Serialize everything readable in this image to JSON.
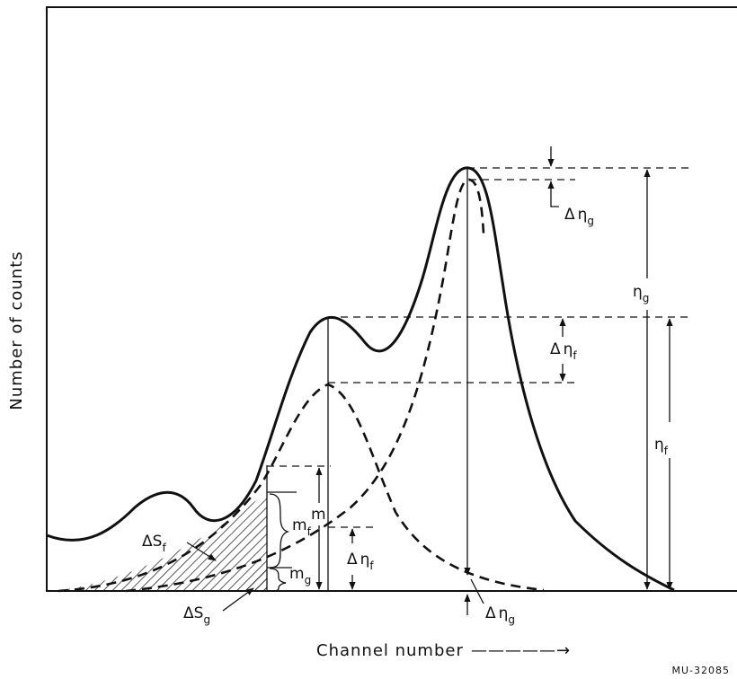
{
  "axes": {
    "y_title": "Number of counts",
    "x_title": "Channel number",
    "x_arrow": "—————→"
  },
  "labels": {
    "delta": "Δ",
    "eta": "η",
    "m": "m",
    "S": "S",
    "sub_f": "f",
    "sub_g": "g"
  },
  "figure_code": "MU-32085"
}
